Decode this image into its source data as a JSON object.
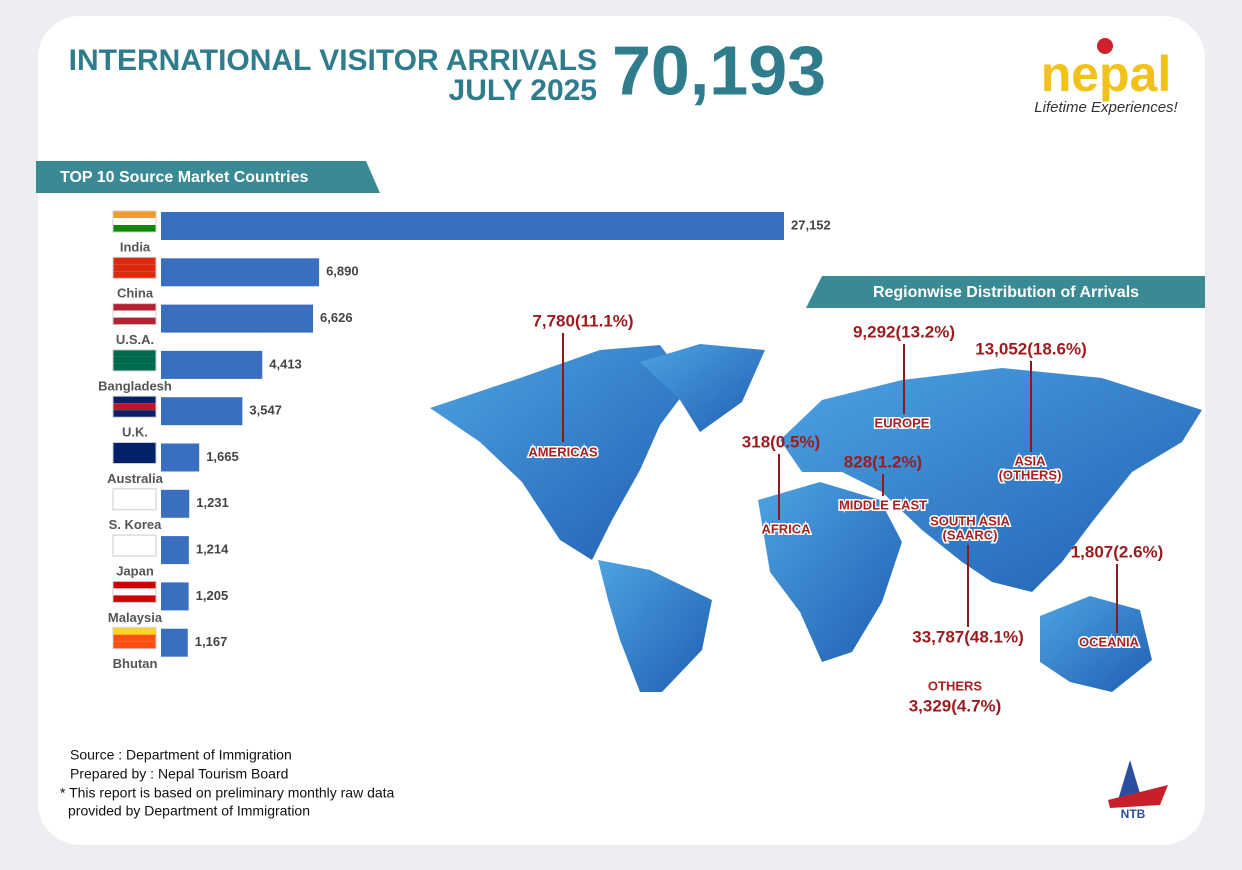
{
  "header": {
    "title": "INTERNATIONAL VISITOR ARRIVALS",
    "period": "JULY 2025",
    "total": "70,193"
  },
  "logo": {
    "brand": "nepal",
    "tagline": "Lifetime Experiences!",
    "org_mark": "NTB"
  },
  "chart_data": {
    "type": "bar",
    "orientation": "horizontal",
    "title": "TOP 10 Source Market Countries",
    "categories": [
      "India",
      "China",
      "U.S.A.",
      "Bangladesh",
      "U.K.",
      "Australia",
      "S. Korea",
      "Japan",
      "Malaysia",
      "Bhutan"
    ],
    "values": [
      27152,
      6890,
      6626,
      4413,
      3547,
      1665,
      1231,
      1214,
      1205,
      1167
    ],
    "value_labels": [
      "27,152",
      "6,890",
      "6,626",
      "4,413",
      "3,547",
      "1,665",
      "1,231",
      "1,214",
      "1,205",
      "1,167"
    ],
    "color": "#3a6fbf"
  },
  "regions": {
    "title": "Regionwise Distribution of Arrivals",
    "items": [
      {
        "name": [
          "AMERICAS"
        ],
        "value": "7,780(11.1%)"
      },
      {
        "name": [
          "EUROPE"
        ],
        "value": "9,292(13.2%)"
      },
      {
        "name": [
          "ASIA",
          "(OTHERS)"
        ],
        "value": "13,052(18.6%)"
      },
      {
        "name": [
          "AFRICA"
        ],
        "value": "318(0.5%)"
      },
      {
        "name": [
          "MIDDLE EAST"
        ],
        "value": "828(1.2%)"
      },
      {
        "name": [
          "SOUTH ASIA",
          "(SAARC)"
        ],
        "value": "33,787(48.1%)"
      },
      {
        "name": [
          "OCEANIA"
        ],
        "value": "1,807(2.6%)"
      },
      {
        "name": [
          "OTHERS"
        ],
        "value": "3,329(4.7%)"
      }
    ]
  },
  "notes": [
    "Source : Department of Immigration",
    "Prepared by : Nepal Tourism Board",
    "* This report is based on preliminary monthly raw data",
    "provided by Department of Immigration"
  ]
}
